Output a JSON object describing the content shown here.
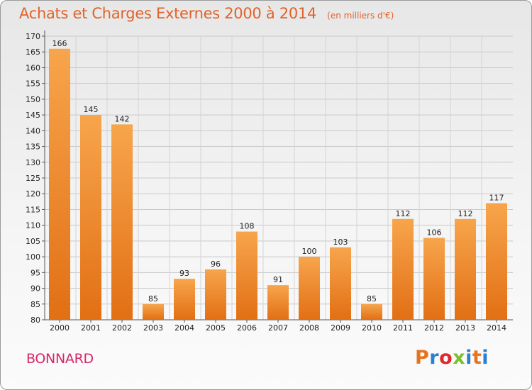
{
  "header": {
    "title": "Achats et Charges Externes 2000 à 2014",
    "unit": "(en milliers d'€)"
  },
  "footer": {
    "commune": "BONNARD",
    "logo": "Proxiti",
    "logo_colors": [
      "#e8731e",
      "#2a7fd4",
      "#e2262a",
      "#7bbf2a",
      "#2a7fd4",
      "#e8731e",
      "#2a7fd4"
    ]
  },
  "colors": {
    "bar_light": "#f7a54c",
    "bar_dark": "#e26f14",
    "title": "#e2622a",
    "commune": "#d6286a"
  },
  "chart_data": {
    "type": "bar",
    "title": "Achats et Charges Externes 2000 à 2014",
    "subtitle": "(en milliers d'€)",
    "xlabel": "",
    "ylabel": "",
    "categories": [
      "2000",
      "2001",
      "2002",
      "2003",
      "2004",
      "2005",
      "2006",
      "2007",
      "2008",
      "2009",
      "2010",
      "2011",
      "2012",
      "2013",
      "2014"
    ],
    "values": [
      166,
      145,
      142,
      85,
      93,
      96,
      108,
      91,
      100,
      103,
      85,
      112,
      106,
      112,
      117
    ],
    "data_labels": [
      "166",
      "145",
      "142",
      "85",
      "93",
      "96",
      "108",
      "91",
      "100",
      "103",
      "85",
      "112",
      "106",
      "112",
      "117"
    ],
    "ylim": [
      80,
      170
    ],
    "yticks": [
      "80",
      "85",
      "90",
      "95",
      "100",
      "105",
      "110",
      "115",
      "120",
      "125",
      "130",
      "135",
      "140",
      "145",
      "150",
      "155",
      "160",
      "165",
      "170"
    ],
    "grid": true
  }
}
